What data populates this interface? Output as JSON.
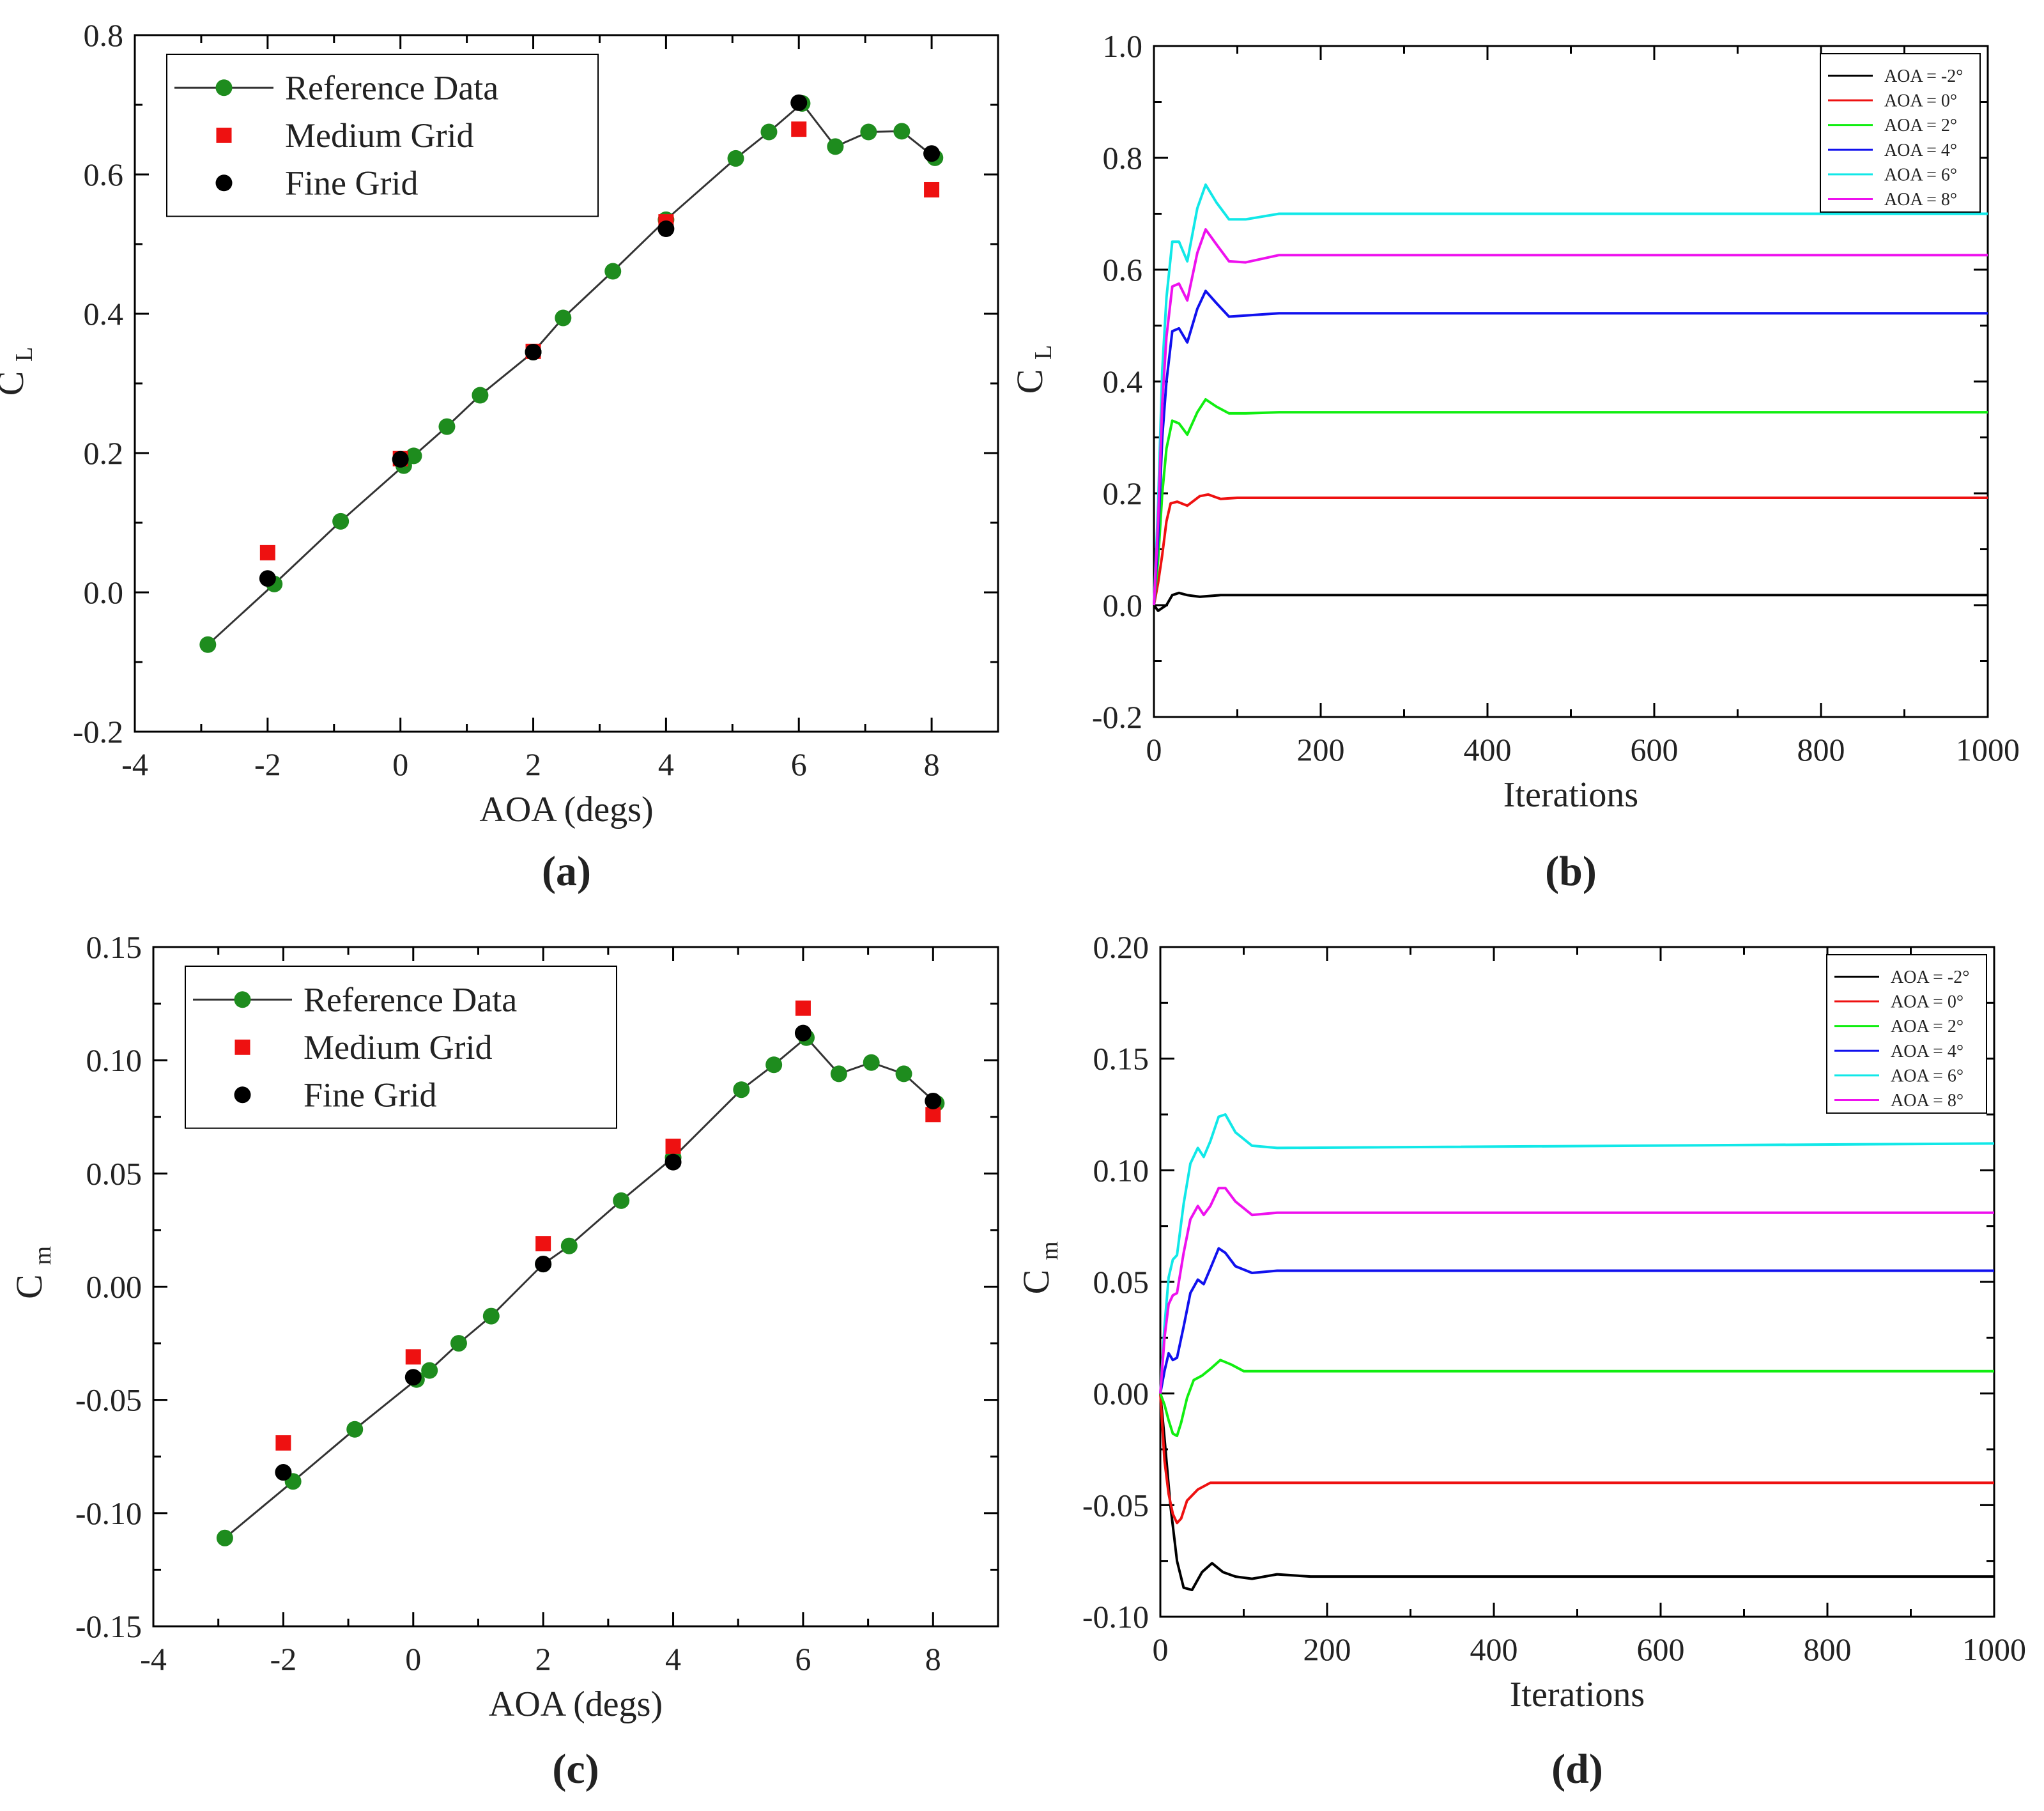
{
  "panels": [
    "(a)",
    "(b)",
    "(c)",
    "(d)"
  ],
  "chart_data": [
    {
      "type": "scatter",
      "panel_label": "(a)",
      "xlabel": "AOA (degs)",
      "ylabel": "C",
      "ylabel_sub": "L",
      "xlim": [
        -4,
        9
      ],
      "ylim": [
        -0.2,
        0.8
      ],
      "xticks": [
        -4,
        -2,
        0,
        2,
        4,
        6,
        8
      ],
      "yticks": [
        -0.2,
        0.0,
        0.2,
        0.4,
        0.6,
        0.8
      ],
      "ytick_format": 1,
      "legend_position": "top-left",
      "legend_font": 54,
      "series": [
        {
          "name": "Reference Data",
          "style": "line-marker",
          "color": "#1e8c1e",
          "x": [
            -2.9,
            -1.9,
            -0.9,
            0.05,
            0.2,
            0.7,
            1.2,
            2.0,
            2.45,
            3.2,
            4.0,
            5.05,
            5.55,
            6.05,
            6.55,
            7.05,
            7.55,
            8.05
          ],
          "y": [
            -0.075,
            0.012,
            0.102,
            0.182,
            0.196,
            0.238,
            0.283,
            0.345,
            0.394,
            0.461,
            0.535,
            0.623,
            0.661,
            0.702,
            0.64,
            0.661,
            0.662,
            0.624
          ]
        },
        {
          "name": "Medium Grid",
          "style": "square",
          "color": "#ee1111",
          "x": [
            -2,
            0,
            2,
            4,
            6,
            8
          ],
          "y": [
            0.057,
            0.192,
            0.346,
            0.532,
            0.665,
            0.578
          ]
        },
        {
          "name": "Fine Grid",
          "style": "circle",
          "color": "#000000",
          "x": [
            -2,
            0,
            2,
            4,
            6,
            8
          ],
          "y": [
            0.02,
            0.191,
            0.345,
            0.522,
            0.703,
            0.63
          ]
        }
      ]
    },
    {
      "type": "line",
      "panel_label": "(b)",
      "xlabel": "Iterations",
      "ylabel": "C",
      "ylabel_sub": "L",
      "xlim": [
        0,
        1000
      ],
      "ylim": [
        -0.2,
        1.0
      ],
      "xticks": [
        0,
        200,
        400,
        600,
        800,
        1000
      ],
      "yticks": [
        -0.2,
        0.0,
        0.2,
        0.4,
        0.6,
        0.8,
        1.0
      ],
      "ytick_format": 1,
      "legend_position": "top-right",
      "legend_font": 28,
      "series": [
        {
          "name": "AOA = -2°",
          "color": "#000000",
          "x": [
            0,
            5,
            10,
            15,
            22,
            30,
            40,
            55,
            80,
            120,
            1000
          ],
          "y": [
            0.0,
            -0.01,
            -0.005,
            0.0,
            0.018,
            0.022,
            0.018,
            0.015,
            0.018,
            0.018,
            0.018
          ]
        },
        {
          "name": "AOA = 0°",
          "color": "#ee1111",
          "x": [
            0,
            5,
            10,
            15,
            20,
            28,
            40,
            55,
            65,
            80,
            100,
            140,
            1000
          ],
          "y": [
            0.0,
            0.04,
            0.09,
            0.15,
            0.182,
            0.185,
            0.178,
            0.195,
            0.198,
            0.19,
            0.192,
            0.192,
            0.192
          ]
        },
        {
          "name": "AOA = 2°",
          "color": "#11ee11",
          "x": [
            0,
            5,
            10,
            15,
            22,
            30,
            40,
            52,
            62,
            75,
            90,
            110,
            150,
            1000
          ],
          "y": [
            0.0,
            0.08,
            0.2,
            0.28,
            0.33,
            0.325,
            0.305,
            0.345,
            0.368,
            0.355,
            0.343,
            0.343,
            0.345,
            0.345
          ]
        },
        {
          "name": "AOA = 4°",
          "color": "#1111ee",
          "x": [
            0,
            5,
            10,
            15,
            22,
            30,
            40,
            52,
            62,
            75,
            90,
            110,
            150,
            1000
          ],
          "y": [
            0.0,
            0.12,
            0.3,
            0.4,
            0.49,
            0.495,
            0.47,
            0.53,
            0.562,
            0.54,
            0.516,
            0.518,
            0.522,
            0.522
          ]
        },
        {
          "name": "AOA = 6°",
          "color": "#11e8e8",
          "x": [
            0,
            5,
            10,
            15,
            22,
            30,
            40,
            52,
            62,
            75,
            90,
            110,
            150,
            1000
          ],
          "y": [
            0.0,
            0.18,
            0.42,
            0.55,
            0.65,
            0.65,
            0.615,
            0.71,
            0.752,
            0.72,
            0.69,
            0.69,
            0.7,
            0.7
          ]
        },
        {
          "name": "AOA = 8°",
          "color": "#ee11ee",
          "x": [
            0,
            5,
            10,
            15,
            22,
            30,
            40,
            52,
            62,
            75,
            90,
            110,
            150,
            1000
          ],
          "y": [
            0.0,
            0.15,
            0.36,
            0.48,
            0.57,
            0.575,
            0.545,
            0.63,
            0.672,
            0.645,
            0.615,
            0.613,
            0.626,
            0.626
          ]
        }
      ]
    },
    {
      "type": "scatter",
      "panel_label": "(c)",
      "xlabel": "AOA (degs)",
      "ylabel": "C",
      "ylabel_sub": "m",
      "xlim": [
        -4,
        9
      ],
      "ylim": [
        -0.15,
        0.15
      ],
      "xticks": [
        -4,
        -2,
        0,
        2,
        4,
        6,
        8
      ],
      "yticks": [
        -0.15,
        -0.1,
        -0.05,
        0.0,
        0.05,
        0.1,
        0.15
      ],
      "ytick_format": 2,
      "legend_position": "top-left",
      "legend_font": 54,
      "series": [
        {
          "name": "Reference Data",
          "style": "line-marker",
          "color": "#1e8c1e",
          "x": [
            -2.9,
            -1.85,
            -0.9,
            0.05,
            0.25,
            0.7,
            1.2,
            2.0,
            2.4,
            3.2,
            4.0,
            5.05,
            5.55,
            6.05,
            6.55,
            7.05,
            7.55,
            8.05
          ],
          "y": [
            -0.111,
            -0.086,
            -0.063,
            -0.041,
            -0.037,
            -0.025,
            -0.013,
            0.01,
            0.018,
            0.038,
            0.057,
            0.087,
            0.098,
            0.11,
            0.094,
            0.099,
            0.094,
            0.081
          ]
        },
        {
          "name": "Medium Grid",
          "style": "square",
          "color": "#ee1111",
          "x": [
            -2,
            0,
            2,
            4,
            6,
            8
          ],
          "y": [
            -0.069,
            -0.031,
            0.019,
            0.062,
            0.123,
            0.076
          ]
        },
        {
          "name": "Fine Grid",
          "style": "circle",
          "color": "#000000",
          "x": [
            -2,
            0,
            2,
            4,
            6,
            8
          ],
          "y": [
            -0.082,
            -0.04,
            0.01,
            0.055,
            0.112,
            0.082
          ]
        }
      ]
    },
    {
      "type": "line",
      "panel_label": "(d)",
      "xlabel": "Iterations",
      "ylabel": "C",
      "ylabel_sub": "m",
      "xlim": [
        0,
        1000
      ],
      "ylim": [
        -0.1,
        0.2
      ],
      "xticks": [
        0,
        200,
        400,
        600,
        800,
        1000
      ],
      "yticks": [
        -0.1,
        -0.05,
        0.0,
        0.05,
        0.1,
        0.15,
        0.2
      ],
      "ytick_format": 2,
      "legend_position": "top-right",
      "legend_font": 28,
      "series": [
        {
          "name": "AOA = -2°",
          "color": "#000000",
          "x": [
            0,
            5,
            12,
            20,
            28,
            38,
            50,
            62,
            75,
            90,
            110,
            140,
            180,
            1000
          ],
          "y": [
            0.0,
            -0.02,
            -0.05,
            -0.075,
            -0.087,
            -0.088,
            -0.08,
            -0.076,
            -0.08,
            -0.082,
            -0.083,
            -0.081,
            -0.082,
            -0.082
          ]
        },
        {
          "name": "AOA = 0°",
          "color": "#ee1111",
          "x": [
            0,
            5,
            10,
            15,
            20,
            25,
            32,
            45,
            60,
            80,
            100,
            1000
          ],
          "y": [
            0.0,
            -0.03,
            -0.045,
            -0.054,
            -0.058,
            -0.056,
            -0.048,
            -0.043,
            -0.04,
            -0.04,
            -0.04,
            -0.04
          ]
        },
        {
          "name": "AOA = 2°",
          "color": "#11ee11",
          "x": [
            0,
            5,
            10,
            15,
            20,
            25,
            32,
            40,
            50,
            60,
            72,
            85,
            100,
            130,
            1000
          ],
          "y": [
            0.0,
            -0.005,
            -0.012,
            -0.018,
            -0.019,
            -0.013,
            -0.002,
            0.006,
            0.008,
            0.011,
            0.015,
            0.013,
            0.01,
            0.01,
            0.01
          ]
        },
        {
          "name": "AOA = 4°",
          "color": "#1111ee",
          "x": [
            0,
            5,
            10,
            15,
            20,
            28,
            36,
            45,
            52,
            60,
            70,
            78,
            90,
            110,
            140,
            1000
          ],
          "y": [
            0.0,
            0.01,
            0.018,
            0.015,
            0.016,
            0.03,
            0.045,
            0.051,
            0.049,
            0.056,
            0.065,
            0.063,
            0.057,
            0.054,
            0.055,
            0.055
          ]
        },
        {
          "name": "AOA = 6°",
          "color": "#11e8e8",
          "x": [
            0,
            5,
            10,
            15,
            20,
            28,
            36,
            45,
            52,
            60,
            70,
            78,
            90,
            110,
            140,
            1000
          ],
          "y": [
            0.0,
            0.03,
            0.052,
            0.06,
            0.062,
            0.085,
            0.103,
            0.11,
            0.106,
            0.113,
            0.124,
            0.125,
            0.117,
            0.111,
            0.11,
            0.112
          ]
        },
        {
          "name": "AOA = 8°",
          "color": "#ee11ee",
          "x": [
            0,
            5,
            10,
            15,
            20,
            28,
            36,
            45,
            52,
            60,
            70,
            78,
            90,
            110,
            140,
            1000
          ],
          "y": [
            0.0,
            0.025,
            0.04,
            0.044,
            0.045,
            0.063,
            0.078,
            0.084,
            0.08,
            0.084,
            0.092,
            0.092,
            0.086,
            0.08,
            0.081,
            0.081
          ]
        }
      ]
    }
  ]
}
